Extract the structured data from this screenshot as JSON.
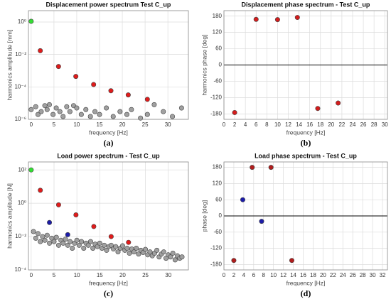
{
  "chart_data": [
    {
      "type": "scatter",
      "title": "Displacement power spectrum Test C_up",
      "xlabel": "frequency [Hz]",
      "ylabel": "harmonics amplitude [mm]",
      "caption": "(a)",
      "log_y": true,
      "grid": true,
      "xlim": [
        -0.6,
        34.5
      ],
      "ylim": [
        1e-06,
        5
      ],
      "xticks": [
        0,
        5,
        10,
        15,
        20,
        25,
        30
      ],
      "yticks": [
        {
          "value": 1e-06,
          "label": "10⁻⁶"
        },
        {
          "value": 0.0001,
          "label": "10⁻⁴"
        },
        {
          "value": 0.01,
          "label": "10⁻²"
        },
        {
          "value": 1,
          "label": "10⁰"
        }
      ],
      "series": [
        {
          "color": "#a0a0a0",
          "x": [
            0,
            1,
            1.5,
            2.2,
            3,
            3.5,
            4,
            4.8,
            5.5,
            6.3,
            7,
            7.8,
            8.5,
            9.3,
            10,
            11,
            12,
            13,
            14,
            15,
            16.5,
            18,
            19.5,
            21,
            22,
            24,
            25.5,
            27,
            29,
            31,
            33
          ],
          "values": [
            4e-06,
            6e-06,
            2e-06,
            3e-06,
            7e-06,
            4e-06,
            8e-06,
            2e-06,
            5e-06,
            3e-06,
            1.5e-06,
            6e-06,
            3e-06,
            7e-06,
            5e-06,
            2e-06,
            4e-06,
            1.5e-06,
            3e-06,
            2e-06,
            5e-06,
            1.5e-06,
            3e-06,
            2e-06,
            4e-06,
            1.2e-06,
            2e-06,
            8e-06,
            3e-06,
            1.5e-06,
            5e-06
          ]
        },
        {
          "color": "#e01b1b",
          "x": [
            2,
            6,
            9.8,
            13.7,
            17.5,
            21.3,
            25.5
          ],
          "values": [
            0.017,
            0.0018,
            0.00044,
            0.00014,
            5.8e-05,
            3.2e-05,
            1.7e-05
          ]
        },
        {
          "color": "#33dd33",
          "x": [
            0
          ],
          "values": [
            1.1
          ]
        }
      ]
    },
    {
      "type": "scatter",
      "title": "Displacement phase spectrum - Test C_up",
      "xlabel": "frequency [Hz]",
      "ylabel": "harmonics phase [deg]",
      "caption": "(b)",
      "grid": true,
      "zero_line": true,
      "xlim": [
        0,
        30.5
      ],
      "ylim": [
        -200,
        200
      ],
      "xticks": [
        0,
        2,
        4,
        6,
        8,
        10,
        12,
        14,
        16,
        18,
        20,
        22,
        24,
        26,
        28,
        30
      ],
      "yticks": [
        -180,
        -120,
        -60,
        0,
        60,
        120,
        180
      ],
      "series": [
        {
          "color": "#d41c1c",
          "x": [
            2,
            6,
            10,
            13.7,
            17.5,
            21.3
          ],
          "values": [
            -175,
            168,
            167,
            175,
            -160,
            -140
          ]
        }
      ]
    },
    {
      "type": "scatter",
      "title": "Load power spectrum - Test C_up",
      "xlabel": "frequency [Hz]",
      "ylabel": "harmonics amplitude [N]",
      "caption": "(c)",
      "log_y": true,
      "grid": true,
      "xlim": [
        -0.6,
        34.4
      ],
      "ylim": [
        0.0001,
        300
      ],
      "xticks": [
        0,
        5,
        10,
        15,
        20,
        25,
        30
      ],
      "yticks": [
        {
          "value": 0.0001,
          "label": "10⁻⁴"
        },
        {
          "value": 0.01,
          "label": "10⁻²"
        },
        {
          "value": 1,
          "label": "10⁰"
        },
        {
          "value": 100,
          "label": "10²"
        }
      ],
      "series": [
        {
          "color": "#a0a0a0",
          "x": [
            0.5,
            1,
            1.5,
            2,
            2.5,
            3,
            3.5,
            4,
            4.5,
            5,
            5.5,
            6,
            6.5,
            7,
            7.5,
            8,
            8.5,
            9,
            9.5,
            10,
            10.5,
            11,
            11.5,
            12,
            12.5,
            13,
            13.5,
            14,
            14.5,
            15,
            15.5,
            16,
            16.5,
            17,
            17.5,
            18,
            18.5,
            19,
            19.5,
            20,
            20.5,
            21,
            21.5,
            22,
            22.5,
            23,
            23.5,
            24,
            24.5,
            25,
            25.5,
            26,
            26.5,
            27,
            27.5,
            28,
            28.5,
            29,
            29.5,
            30,
            30.5,
            31,
            31.5,
            32,
            32.5,
            33
          ],
          "values": [
            0.02,
            0.008,
            0.015,
            0.005,
            0.01,
            0.006,
            0.012,
            0.004,
            0.008,
            0.005,
            0.009,
            0.003,
            0.006,
            0.004,
            0.007,
            0.003,
            0.005,
            0.002,
            0.004,
            0.006,
            0.003,
            0.005,
            0.002,
            0.004,
            0.003,
            0.005,
            0.002,
            0.0035,
            0.0025,
            0.004,
            0.002,
            0.003,
            0.0015,
            0.0025,
            0.003,
            0.0018,
            0.0025,
            0.0012,
            0.002,
            0.0028,
            0.0015,
            0.002,
            0.001,
            0.0018,
            0.0012,
            0.002,
            0.0009,
            0.0015,
            0.0011,
            0.0017,
            0.0008,
            0.0012,
            0.0007,
            0.001,
            0.0015,
            0.0006,
            0.0009,
            0.0012,
            0.0005,
            0.0008,
            0.0006,
            0.001,
            0.0004,
            0.0007,
            0.0005,
            0.0006
          ]
        },
        {
          "color": "#e01b1b",
          "x": [
            2,
            6,
            9.8,
            13.7,
            17.5,
            21.3
          ],
          "values": [
            6,
            0.8,
            0.2,
            0.04,
            0.01,
            0.0045
          ]
        },
        {
          "color": "#1c1ca8",
          "x": [
            4,
            8
          ],
          "values": [
            0.07,
            0.013
          ]
        },
        {
          "color": "#33dd33",
          "x": [
            0
          ],
          "values": [
            100
          ]
        }
      ]
    },
    {
      "type": "scatter",
      "title": "Load phase spectrum - Test C_up",
      "xlabel": "frequency [Hz]",
      "ylabel": "phase [deg]",
      "caption": "(d)",
      "grid": true,
      "zero_line": true,
      "xlim": [
        0,
        33
      ],
      "ylim": [
        -200,
        200
      ],
      "xticks": [
        0,
        2,
        4,
        6,
        8,
        10,
        12,
        14,
        16,
        18,
        20,
        22,
        24,
        26,
        28,
        30,
        32
      ],
      "yticks": [
        -180,
        -120,
        -60,
        0,
        60,
        120,
        180
      ],
      "series": [
        {
          "color": "#b01c1c",
          "x": [
            2,
            5.7,
            9.5,
            13.7
          ],
          "values": [
            -165,
            180,
            180,
            -165
          ]
        },
        {
          "color": "#1c1ca8",
          "x": [
            3.8,
            7.6
          ],
          "values": [
            60,
            -20
          ]
        }
      ]
    }
  ]
}
